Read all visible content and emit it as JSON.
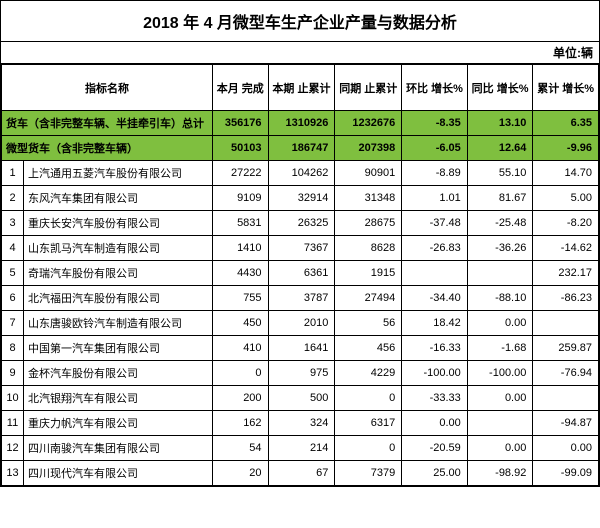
{
  "title": "2018 年 4 月微型车生产企业产量与数据分析",
  "unit": "单位:辆",
  "headers": {
    "name": "指标名称",
    "c1": "本月\n完成",
    "c2": "本期\n止累计",
    "c3": "同期\n止累计",
    "c4": "环比\n增长%",
    "c5": "同比\n增长%",
    "c6": "累计\n增长%"
  },
  "highlight_rows": [
    {
      "name": "货车（含非完整车辆、半挂牵引车）总计",
      "v": [
        "356176",
        "1310926",
        "1232676",
        "-8.35",
        "13.10",
        "6.35"
      ]
    },
    {
      "name": "微型货车（含非完整车辆）",
      "v": [
        "50103",
        "186747",
        "207398",
        "-6.05",
        "12.64",
        "-9.96"
      ]
    }
  ],
  "rows": [
    {
      "idx": "1",
      "name": "上汽通用五菱汽车股份有限公司",
      "v": [
        "27222",
        "104262",
        "90901",
        "-8.89",
        "55.10",
        "14.70"
      ]
    },
    {
      "idx": "2",
      "name": "东风汽车集团有限公司",
      "v": [
        "9109",
        "32914",
        "31348",
        "1.01",
        "81.67",
        "5.00"
      ]
    },
    {
      "idx": "3",
      "name": "重庆长安汽车股份有限公司",
      "v": [
        "5831",
        "26325",
        "28675",
        "-37.48",
        "-25.48",
        "-8.20"
      ]
    },
    {
      "idx": "4",
      "name": "山东凯马汽车制造有限公司",
      "v": [
        "1410",
        "7367",
        "8628",
        "-26.83",
        "-36.26",
        "-14.62"
      ]
    },
    {
      "idx": "5",
      "name": "奇瑞汽车股份有限公司",
      "v": [
        "4430",
        "6361",
        "1915",
        "",
        "",
        "232.17"
      ]
    },
    {
      "idx": "6",
      "name": "北汽福田汽车股份有限公司",
      "v": [
        "755",
        "3787",
        "27494",
        "-34.40",
        "-88.10",
        "-86.23"
      ]
    },
    {
      "idx": "7",
      "name": "山东唐骏欧铃汽车制造有限公司",
      "v": [
        "450",
        "2010",
        "56",
        "18.42",
        "0.00",
        ""
      ]
    },
    {
      "idx": "8",
      "name": "中国第一汽车集团有限公司",
      "v": [
        "410",
        "1641",
        "456",
        "-16.33",
        "-1.68",
        "259.87"
      ]
    },
    {
      "idx": "9",
      "name": "金杯汽车股份有限公司",
      "v": [
        "0",
        "975",
        "4229",
        "-100.00",
        "-100.00",
        "-76.94"
      ]
    },
    {
      "idx": "10",
      "name": "北汽银翔汽车有限公司",
      "v": [
        "200",
        "500",
        "0",
        "-33.33",
        "0.00",
        ""
      ]
    },
    {
      "idx": "11",
      "name": "重庆力帆汽车有限公司",
      "v": [
        "162",
        "324",
        "6317",
        "0.00",
        "",
        "-94.87"
      ]
    },
    {
      "idx": "12",
      "name": "四川南骏汽车集团有限公司",
      "v": [
        "54",
        "214",
        "0",
        "-20.59",
        "0.00",
        "0.00"
      ]
    },
    {
      "idx": "13",
      "name": "四川现代汽车有限公司",
      "v": [
        "20",
        "67",
        "7379",
        "25.00",
        "-98.92",
        "-99.09"
      ]
    }
  ],
  "colors": {
    "highlight_bg": "#7fbf3f",
    "border": "#000000",
    "bg": "#ffffff"
  }
}
